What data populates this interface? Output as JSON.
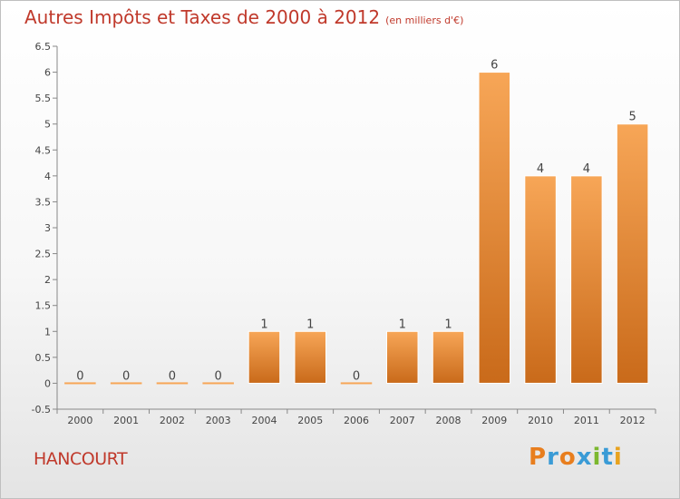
{
  "title": "Autres Impôts et Taxes de 2000 à 2012",
  "subtitle": "(en milliers d'€)",
  "commune": "HANCOURT",
  "logo": {
    "letters": [
      "P",
      "r",
      "o",
      "x",
      "i",
      "t",
      "i"
    ],
    "colors": [
      "#e87e1e",
      "#3a9bd6",
      "#e87e1e",
      "#3a9bd6",
      "#7cb82f",
      "#3a9bd6",
      "#e8a21e"
    ]
  },
  "chart_data": {
    "type": "bar",
    "categories": [
      "2000",
      "2001",
      "2002",
      "2003",
      "2004",
      "2005",
      "2006",
      "2007",
      "2008",
      "2009",
      "2010",
      "2011",
      "2012"
    ],
    "values": [
      0,
      0,
      0,
      0,
      1,
      1,
      0,
      1,
      1,
      6,
      4,
      4,
      5
    ],
    "data_labels": [
      "0",
      "0",
      "0",
      "0",
      "1",
      "1",
      "0",
      "1",
      "1",
      "6",
      "4",
      "4",
      "5"
    ],
    "y_ticks": [
      -0.5,
      0,
      0.5,
      1,
      1.5,
      2,
      2.5,
      3,
      3.5,
      4,
      4.5,
      5,
      5.5,
      6,
      6.5
    ],
    "y_tick_labels": [
      "-0.5",
      "0",
      "0.5",
      "1",
      "1.5",
      "2",
      "2.5",
      "3",
      "3.5",
      "4",
      "4.5",
      "5",
      "5.5",
      "6",
      "6.5"
    ],
    "ylim": [
      -0.5,
      6.5
    ],
    "grid": false,
    "bar_color_top": "#f7a657",
    "bar_color_bottom": "#c96a1a",
    "text_color": "#c0392b"
  }
}
